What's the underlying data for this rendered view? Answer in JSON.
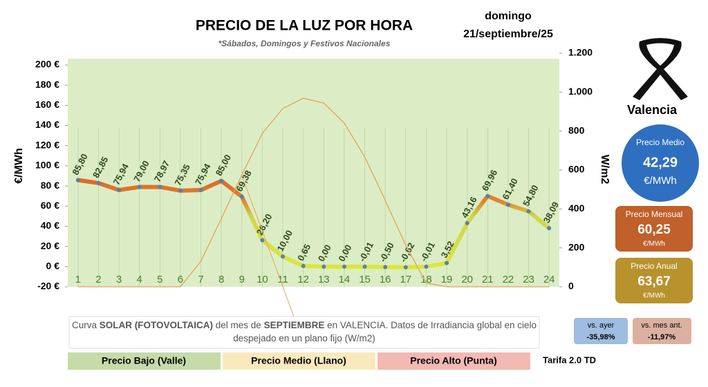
{
  "chart_data": {
    "type": "line",
    "title": "PRECIO DE LA LUZ POR HORA",
    "subtitle": "*Sábados, Domingos y Festivos Nacionales",
    "ylabel": "€/MWh",
    "y2label": "W/m2",
    "categories": [
      "1",
      "2",
      "3",
      "4",
      "5",
      "6",
      "7",
      "8",
      "9",
      "10",
      "11",
      "12",
      "13",
      "14",
      "15",
      "16",
      "17",
      "18",
      "19",
      "20",
      "21",
      "22",
      "23",
      "24"
    ],
    "series": [
      {
        "color": "#5b7fa8",
        "values": [
          85.8,
          82.85,
          75.94,
          79.0,
          78.97,
          75.35,
          75.94,
          85.0,
          69.38,
          26.2,
          10.0,
          0.65,
          0.0,
          0.0,
          -0.01,
          -0.5,
          -0.62,
          -0.01,
          3.52,
          43.16,
          69.96,
          61.4,
          54.8,
          38.09
        ],
        "value_labels": [
          "85,80",
          "82,85",
          "75,94",
          "79,00",
          "78,97",
          "75,35",
          "75,94",
          "85,00",
          "69,38",
          "26,20",
          "10,00",
          "0,65",
          "0,00",
          "0,00",
          "-0,01",
          "-0,50",
          "-0,62",
          "-0,01",
          "3,52",
          "43,16",
          "69,96",
          "61,40",
          "54,80",
          "38,09"
        ]
      },
      {
        "color": "#e2a35a",
        "axis": "y2",
        "values": [
          0,
          0,
          0,
          0,
          0,
          0,
          131,
          351,
          575,
          788,
          916,
          969,
          944,
          841,
          667,
          444,
          213,
          20,
          0,
          0,
          0,
          0,
          0,
          0
        ]
      }
    ],
    "ylim": [
      -20,
      200
    ],
    "yticks": [
      {
        "value": -20,
        "label": "-20 €"
      },
      {
        "value": 0,
        "label": "0 €"
      },
      {
        "value": 20,
        "label": "20 €"
      },
      {
        "value": 40,
        "label": "40 €"
      },
      {
        "value": 60,
        "label": "60 €"
      },
      {
        "value": 80,
        "label": "80 €"
      },
      {
        "value": 100,
        "label": "100 €"
      },
      {
        "value": 120,
        "label": "120 €"
      },
      {
        "value": 140,
        "label": "140 €"
      },
      {
        "value": 160,
        "label": "160 €"
      },
      {
        "value": 180,
        "label": "180 €"
      },
      {
        "value": 200,
        "label": "200 €"
      }
    ],
    "y2lim": [
      0,
      1200
    ],
    "y2ticks": [
      0,
      200,
      400,
      600,
      800,
      {
        "value": 1000,
        "label": "1.000"
      },
      {
        "value": 1200,
        "label": "1.200"
      }
    ],
    "grid": true,
    "legend_bands": [
      {
        "label": "Precio Bajo (Valle)",
        "color": "#c5dba8"
      },
      {
        "label": "Precio Medio (Llano)",
        "color": "#fbe9bd"
      },
      {
        "label": "Precio Alto (Punta)",
        "color": "#f3b9b3"
      }
    ],
    "tariff": "Tarifa 2.0 TD",
    "note": [
      "Curva ",
      "SOLAR (FOTOVOLTAICA)",
      " del mes de ",
      "SEPTIEMBRE",
      " en VALENCIA. Datos de Irradiancia global en cielo despejado en un plano fijo (W/m2)"
    ]
  },
  "panel": {
    "day": "domingo",
    "date": "21/septiembre/25",
    "city": "Valencia",
    "average": {
      "label": "Precio Medio",
      "value": "42,29",
      "unit": "€/MWh"
    },
    "monthly": {
      "label": "Precio Mensual",
      "value": "60,25",
      "unit": "€/MWh"
    },
    "annual": {
      "label": "Precio Anual",
      "value": "63,67",
      "unit": "€/MWh"
    },
    "vs_yesterday": {
      "label": "vs. ayer",
      "value": "-35,98%"
    },
    "vs_month": {
      "label": "vs. mes ant.",
      "value": "-11,97%"
    }
  }
}
